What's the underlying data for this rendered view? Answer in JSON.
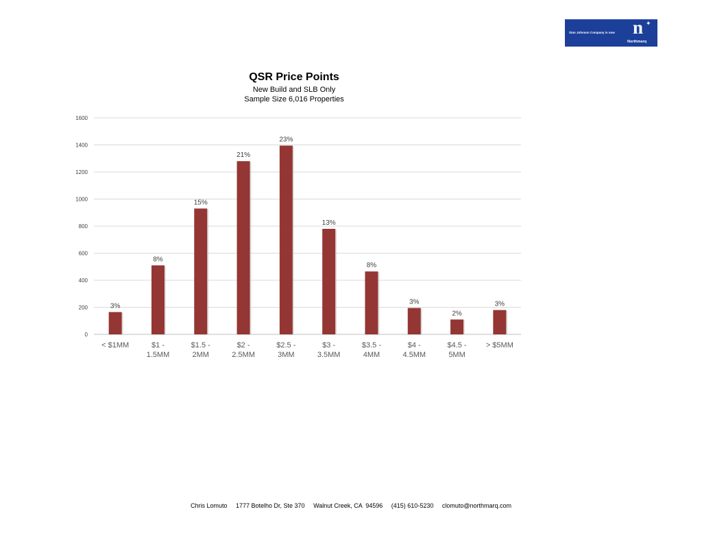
{
  "logo": {
    "tagline": "Stan Johnson Company is now",
    "letter": "n",
    "wordmark": "Northmarq",
    "color": "#1c3f9a"
  },
  "chart_data": {
    "type": "bar",
    "title": "QSR Price Points",
    "subtitle_lines": [
      "New Build and SLB Only",
      "Sample Size 6,016 Properties"
    ],
    "xlabel": "",
    "ylabel": "",
    "ylim": [
      0,
      1600
    ],
    "yticks": [
      0,
      200,
      400,
      600,
      800,
      1000,
      1200,
      1400,
      1600
    ],
    "grid": true,
    "legend": "none",
    "bar_color": "#943634",
    "categories": [
      [
        "< $1MM"
      ],
      [
        "$1 -",
        "1.5MM"
      ],
      [
        "$1.5 -",
        "2MM"
      ],
      [
        "$2 -",
        "2.5MM"
      ],
      [
        "$2.5 -",
        "3MM"
      ],
      [
        "$3 -",
        "3.5MM"
      ],
      [
        "$3.5 -",
        "4MM"
      ],
      [
        "$4 -",
        "4.5MM"
      ],
      [
        "$4.5 -",
        "5MM"
      ],
      [
        "> $5MM"
      ]
    ],
    "values": [
      165,
      510,
      930,
      1280,
      1395,
      780,
      465,
      195,
      110,
      180
    ],
    "data_labels": [
      "3%",
      "8%",
      "15%",
      "21%",
      "23%",
      "13%",
      "8%",
      "3%",
      "2%",
      "3%"
    ]
  },
  "footer": {
    "text": "Chris Lomuto     1777 Botelho Dr, Ste 370     Walnut Creek, CA  94596     (415) 610-5230     clomuto@northmarq.com"
  }
}
